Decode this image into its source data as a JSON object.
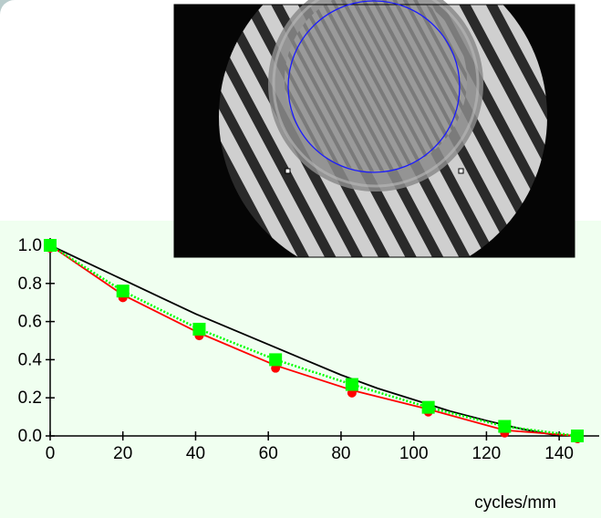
{
  "chart_data": {
    "type": "line",
    "xlabel": "cycles/mm",
    "xlim": [
      0,
      151
    ],
    "ylim": [
      0,
      1
    ],
    "xticks": [
      0,
      20,
      40,
      60,
      80,
      100,
      120,
      140
    ],
    "yticks": [
      {
        "value": 0,
        "label": "0.0"
      },
      {
        "value": 0.2,
        "label": "0.2"
      },
      {
        "value": 0.4,
        "label": "0.4"
      },
      {
        "value": 0.6,
        "label": "0.6"
      },
      {
        "value": 0.8,
        "label": "0.8"
      },
      {
        "value": 1,
        "label": "1.0"
      }
    ],
    "series": [
      {
        "color": "#000000",
        "marker": "none",
        "dash": "solid",
        "x": [
          0,
          10,
          20,
          30,
          40,
          50,
          60,
          70,
          80,
          90,
          100,
          110,
          120,
          130,
          140
        ],
        "values": [
          1.0,
          0.91,
          0.82,
          0.73,
          0.64,
          0.56,
          0.48,
          0.4,
          0.32,
          0.25,
          0.19,
          0.13,
          0.08,
          0.035,
          0.0
        ]
      },
      {
        "color": "#ff0000",
        "marker": "dot",
        "dash": "solid",
        "x": [
          0,
          20,
          41,
          62,
          83,
          104,
          125,
          145
        ],
        "values": [
          1.0,
          0.74,
          0.54,
          0.37,
          0.24,
          0.14,
          0.03,
          0.0
        ]
      },
      {
        "color": "#00ff00",
        "marker": "square",
        "dash": "dotted",
        "x": [
          0,
          20,
          41,
          62,
          83,
          104,
          125,
          145
        ],
        "values": [
          1.0,
          0.76,
          0.56,
          0.4,
          0.27,
          0.15,
          0.05,
          0.0
        ]
      }
    ]
  }
}
